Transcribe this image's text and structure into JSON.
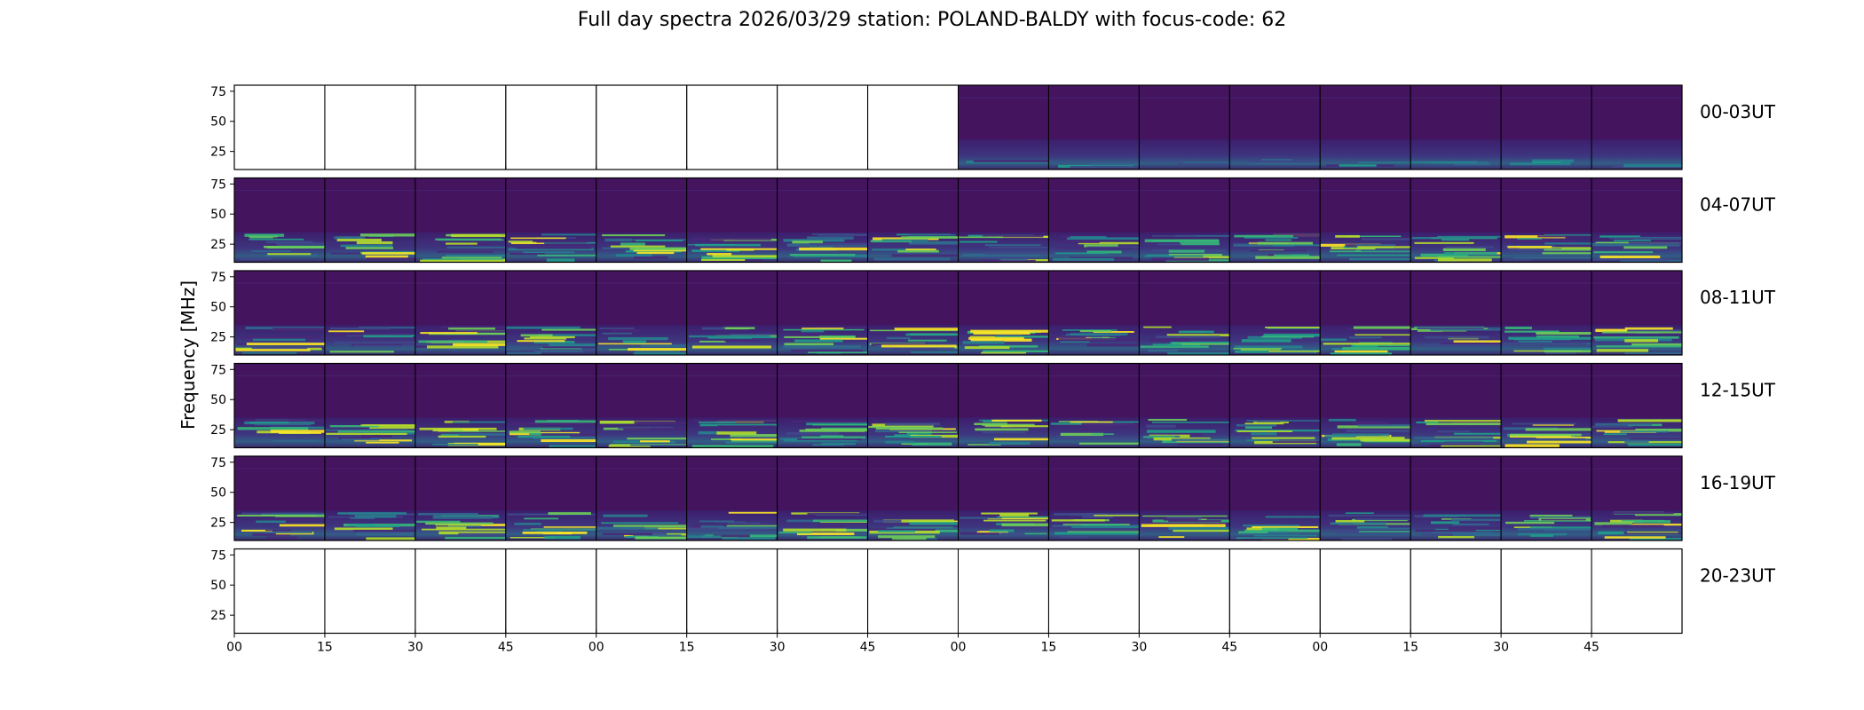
{
  "chart_data": {
    "type": "heatmap",
    "title": "Full day spectra 2026/03/29 station: POLAND-BALDY with focus-code: 62",
    "ylabel": "Frequency [MHz]",
    "xlabel": "",
    "y_ticks": [
      25,
      50,
      75
    ],
    "ylim": [
      10,
      80
    ],
    "x_ticks": [
      "00",
      "15",
      "30",
      "45",
      "00",
      "15",
      "30",
      "45",
      "00",
      "15",
      "30",
      "45",
      "00",
      "15",
      "30",
      "45"
    ],
    "panels_per_row": 16,
    "panel_minutes": 15,
    "colormap": "viridis",
    "rows": [
      {
        "label": "00-03UT",
        "panels": [
          0,
          0,
          0,
          0,
          0,
          0,
          0,
          0,
          1,
          1,
          1,
          1,
          1,
          1,
          1,
          1
        ]
      },
      {
        "label": "04-07UT",
        "panels": [
          1,
          1,
          1,
          1,
          1,
          1,
          1,
          1,
          1,
          1,
          1,
          1,
          1,
          1,
          1,
          1
        ]
      },
      {
        "label": "08-11UT",
        "panels": [
          1,
          1,
          1,
          1,
          1,
          1,
          1,
          1,
          1,
          1,
          1,
          1,
          1,
          1,
          1,
          1
        ]
      },
      {
        "label": "12-15UT",
        "panels": [
          1,
          1,
          1,
          1,
          1,
          1,
          1,
          1,
          1,
          1,
          1,
          1,
          1,
          1,
          1,
          1
        ]
      },
      {
        "label": "16-19UT",
        "panels": [
          1,
          1,
          1,
          1,
          1,
          1,
          1,
          1,
          1,
          1,
          1,
          1,
          1,
          1,
          1,
          1
        ]
      },
      {
        "label": "20-23UT",
        "panels": [
          0,
          0,
          0,
          0,
          0,
          0,
          0,
          0,
          0,
          0,
          0,
          0,
          0,
          0,
          0,
          0
        ]
      }
    ]
  }
}
